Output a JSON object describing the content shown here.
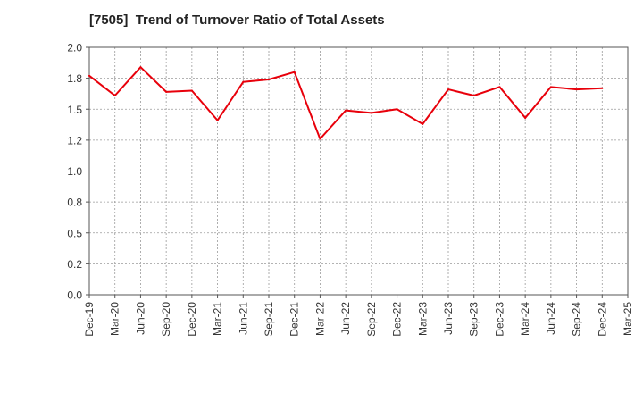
{
  "chart_data": {
    "type": "line",
    "title": "[7505]  Trend of Turnover Ratio of Total Assets",
    "xlabel": "",
    "ylabel": "",
    "ylim": [
      0,
      2.0
    ],
    "yticks": [
      "0.0",
      "0.2",
      "0.5",
      "0.8",
      "1.0",
      "1.2",
      "1.5",
      "1.8",
      "2.0"
    ],
    "ytick_values": [
      0,
      0.25,
      0.5,
      0.75,
      1.0,
      1.25,
      1.5,
      1.75,
      2.0
    ],
    "categories": [
      "Dec-19",
      "Mar-20",
      "Jun-20",
      "Sep-20",
      "Dec-20",
      "Mar-21",
      "Jun-21",
      "Sep-21",
      "Dec-21",
      "Mar-22",
      "Jun-22",
      "Sep-22",
      "Dec-22",
      "Mar-23",
      "Jun-23",
      "Sep-23",
      "Dec-23",
      "Mar-24",
      "Jun-24",
      "Sep-24",
      "Dec-24",
      "Mar-25"
    ],
    "series": [
      {
        "name": "",
        "color": "#e8000b",
        "values": [
          1.77,
          1.61,
          1.84,
          1.64,
          1.65,
          1.41,
          1.72,
          1.74,
          1.8,
          1.26,
          1.49,
          1.47,
          1.5,
          1.38,
          1.66,
          1.61,
          1.68,
          1.43,
          1.68,
          1.66,
          1.67,
          null
        ]
      }
    ],
    "grid": true,
    "legend": "none"
  }
}
